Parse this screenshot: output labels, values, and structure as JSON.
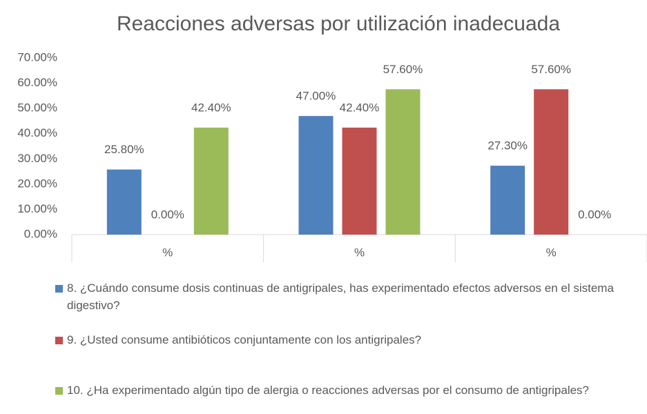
{
  "chart_data": {
    "type": "bar",
    "title": "Reacciones adversas por utilización inadecuada",
    "categories": [
      "%",
      "%",
      "%"
    ],
    "series": [
      {
        "name": "8. ¿Cuándo consume dosis continuas de antigripales, has experimentado efectos adversos en el sistema digestivo?",
        "color": "#4f81bd",
        "values": [
          25.8,
          47.0,
          27.3
        ],
        "value_labels": [
          "25.80%",
          "47.00%",
          "27.30%"
        ]
      },
      {
        "name": "9. ¿Usted consume antibióticos conjuntamente con los antigripales?",
        "color": "#c0504d",
        "values": [
          0,
          42.4,
          57.6
        ],
        "value_labels": [
          "0.00%",
          "42.40%",
          "57.60%"
        ]
      },
      {
        "name": "10. ¿Ha experimentado algún tipo de alergia o reacciones adversas por el consumo de antigripales?",
        "color": "#9bbb59",
        "values": [
          42.4,
          57.6,
          0
        ],
        "value_labels": [
          "42.40%",
          "57.60%",
          "0.00%"
        ]
      }
    ],
    "ylim": [
      0,
      70
    ],
    "yticks": [
      {
        "value": 0,
        "label": "0.00%"
      },
      {
        "value": 10,
        "label": "10.00%"
      },
      {
        "value": 20,
        "label": "20.00%"
      },
      {
        "value": 30,
        "label": "30.00%"
      },
      {
        "value": 40,
        "label": "40.00%"
      },
      {
        "value": 50,
        "label": "50.00%"
      },
      {
        "value": 60,
        "label": "60.00%"
      },
      {
        "value": 70,
        "label": "70.00%"
      }
    ],
    "grid": false,
    "legend": "bottom"
  }
}
